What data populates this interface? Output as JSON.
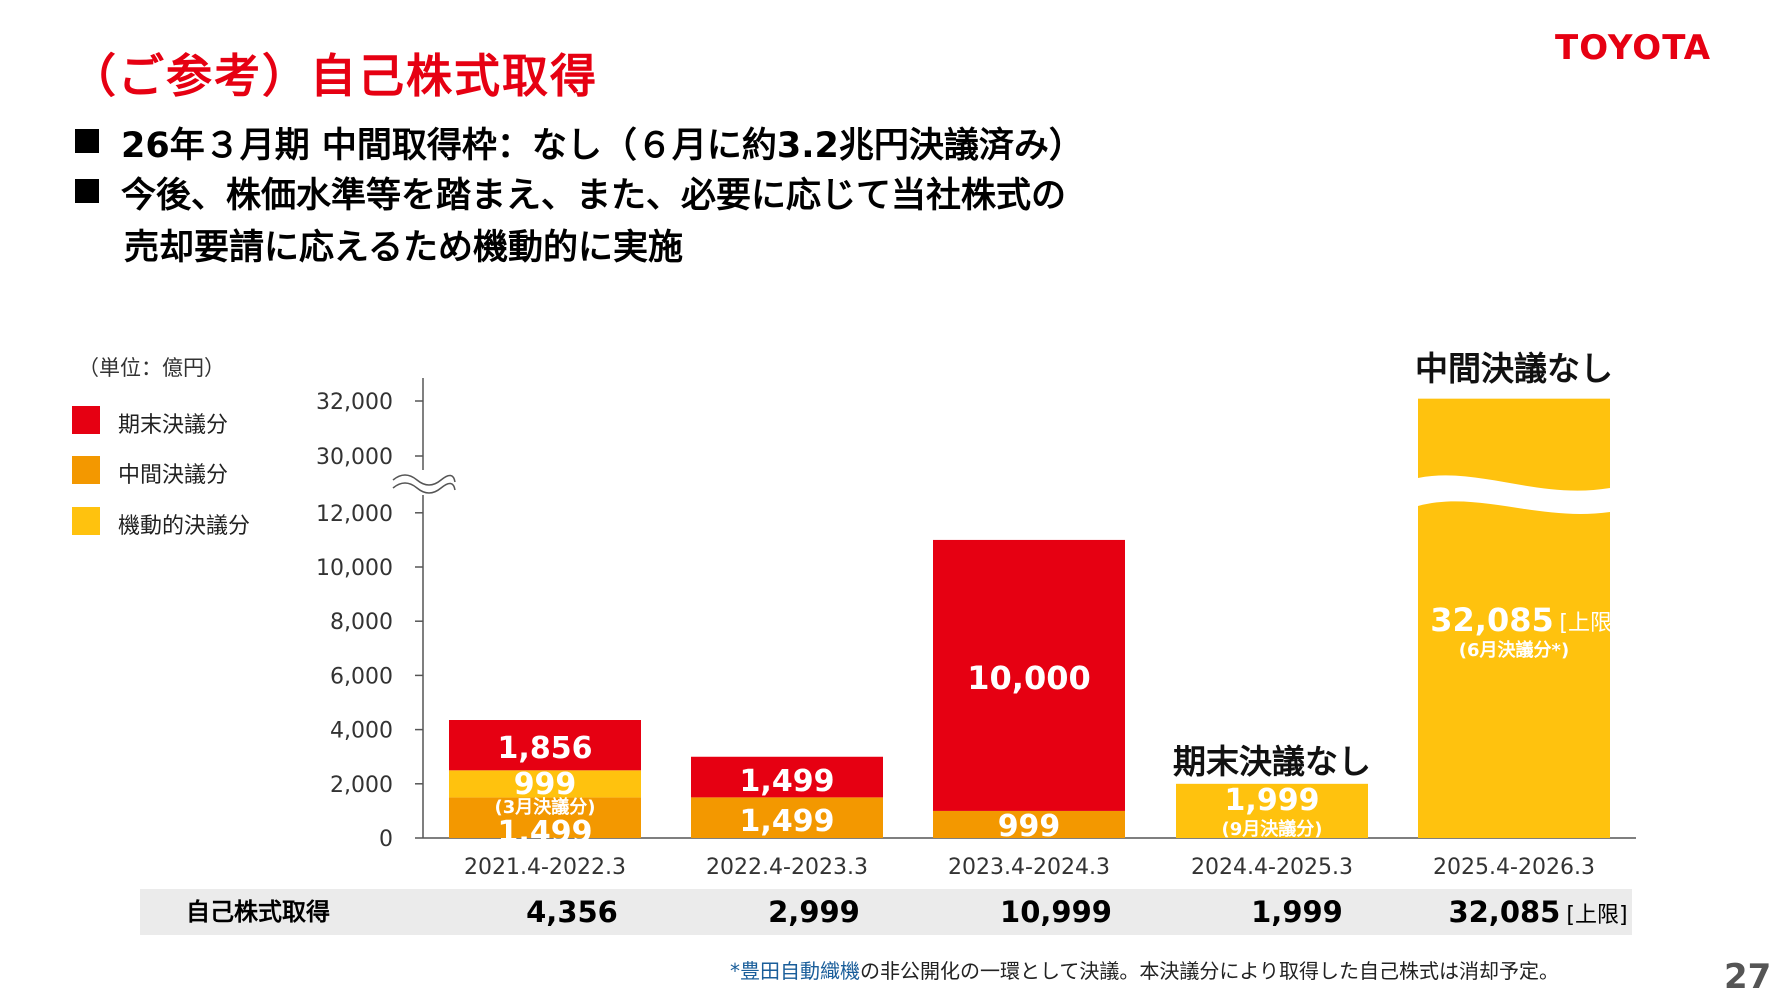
{
  "header": {
    "title": "（ご参考）自己株式取得",
    "logo_text": "TOYOTA",
    "brand_color": "#e60012"
  },
  "bullets": [
    "26年３月期 中間取得枠：なし（６月に約3.2兆円決議済み）",
    "今後、株価水準等を踏まえ、また、必要に応じて当社株式の",
    "売却要請に応えるため機動的に実施"
  ],
  "chart_data": {
    "type": "bar",
    "stacked": true,
    "unit_label": "（単位：億円）",
    "categories": [
      "2021.4-2022.3",
      "2022.4-2023.3",
      "2023.4-2024.3",
      "2024.4-2025.3",
      "2025.4-2026.3"
    ],
    "series": [
      {
        "name": "中間決議分",
        "color": "#f39800",
        "values": [
          1499,
          1499,
          999,
          0,
          0
        ],
        "labels": [
          "1,499",
          "1,499",
          "999",
          "",
          ""
        ]
      },
      {
        "name": "機動的決議分",
        "color": "#ffc20e",
        "values": [
          999,
          0,
          0,
          1999,
          32085
        ],
        "labels": [
          "999",
          "",
          "",
          "1,999",
          "32,085"
        ],
        "sublabels": [
          "(3月決議分)",
          "",
          "",
          "(9月決議分)",
          "(6月決議分*)"
        ]
      },
      {
        "name": "期末決議分",
        "color": "#e60012",
        "values": [
          1856,
          1499,
          10000,
          0,
          0
        ],
        "labels": [
          "1,856",
          "1,499",
          "10,000",
          "",
          ""
        ]
      }
    ],
    "legend_order": [
      "期末決議分",
      "中間決議分",
      "機動的決議分"
    ],
    "legend_position": "left",
    "y_ticks_lower": [
      "0",
      "2,000",
      "4,000",
      "6,000",
      "8,000",
      "10,000",
      "12,000"
    ],
    "y_ticks_upper": [
      "30,000",
      "32,000"
    ],
    "axis_break": true,
    "ylim_lower": [
      0,
      12000
    ],
    "ylim_upper": [
      30000,
      32000
    ],
    "annotations": {
      "no_year_end": "期末決議なし",
      "no_interim": "中間決議なし",
      "upper_limit_suffix": "[上限]"
    },
    "grid": false
  },
  "summary": {
    "label": "自己株式取得",
    "values": [
      "4,356",
      "2,999",
      "10,999",
      "1,999",
      "32,085"
    ],
    "last_suffix": "[上限]"
  },
  "footnote": {
    "asterisk_part": "*豊田自動織機",
    "text": "の非公開化の一環として決議。本決議分により取得した自己株式は消却予定。"
  },
  "page_number": "27"
}
